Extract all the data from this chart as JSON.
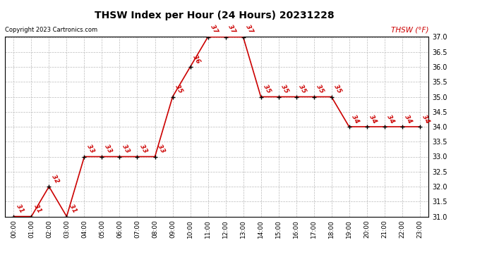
{
  "title": "THSW Index per Hour (24 Hours) 20231228",
  "copyright": "Copyright 2023 Cartronics.com",
  "legend_label": "THSW (°F)",
  "hours": [
    "00:00",
    "01:00",
    "02:00",
    "03:00",
    "04:00",
    "05:00",
    "06:00",
    "07:00",
    "08:00",
    "09:00",
    "10:00",
    "11:00",
    "12:00",
    "13:00",
    "14:00",
    "15:00",
    "16:00",
    "17:00",
    "18:00",
    "19:00",
    "20:00",
    "21:00",
    "22:00",
    "23:00"
  ],
  "values": [
    31,
    31,
    32,
    31,
    33,
    33,
    33,
    33,
    33,
    35,
    36,
    37,
    37,
    37,
    35,
    35,
    35,
    35,
    35,
    34,
    34,
    34,
    34,
    34
  ],
  "ylim": [
    31.0,
    37.0
  ],
  "yticks": [
    31.0,
    31.5,
    32.0,
    32.5,
    33.0,
    33.5,
    34.0,
    34.5,
    35.0,
    35.5,
    36.0,
    36.5,
    37.0
  ],
  "line_color": "#cc0000",
  "marker_color": "black",
  "label_color": "#cc0000",
  "bg_color": "#ffffff",
  "grid_color": "#bbbbbb",
  "title_color": "#000000",
  "copyright_color": "#000000",
  "legend_color": "#cc0000"
}
